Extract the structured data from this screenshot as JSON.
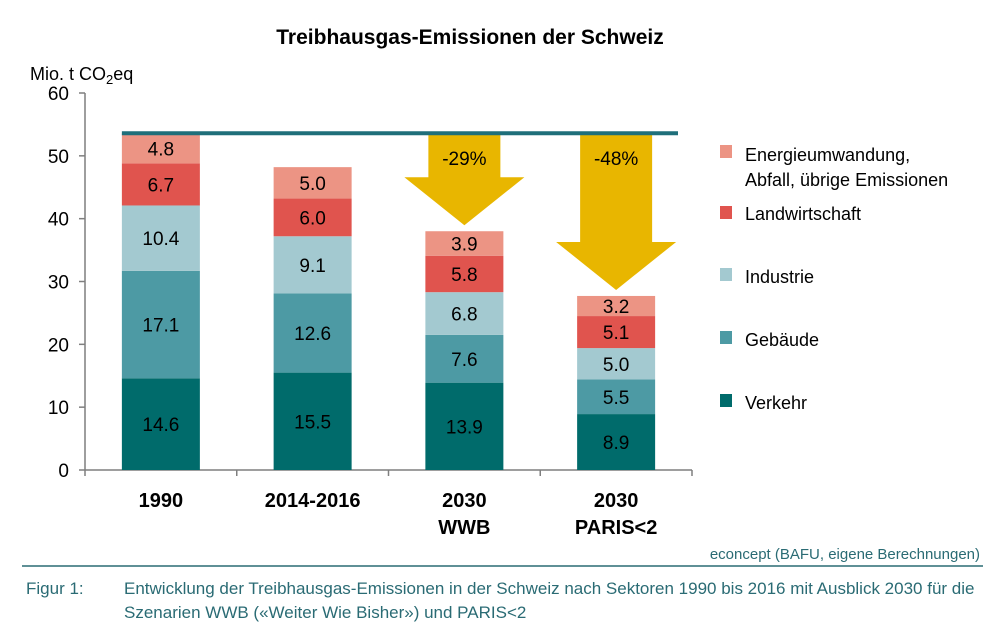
{
  "chart_data": {
    "type": "bar",
    "stacked": true,
    "title": "Treibhausgas-Emissionen der Schweiz",
    "ylabel_parts": [
      "Mio. t CO",
      "2",
      "eq"
    ],
    "ylim": [
      0,
      60
    ],
    "yticks": [
      0,
      10,
      20,
      30,
      40,
      50,
      60
    ],
    "categories": [
      [
        "1990"
      ],
      [
        "2014-2016"
      ],
      [
        "2030",
        "WWB"
      ],
      [
        "2030",
        "PARIS<2"
      ]
    ],
    "series": [
      {
        "name": "Verkehr",
        "color": "#006b6b",
        "values": [
          14.6,
          15.5,
          13.9,
          8.9
        ]
      },
      {
        "name": "Gebäude",
        "color": "#4d9aa4",
        "values": [
          17.1,
          12.6,
          7.6,
          5.5
        ]
      },
      {
        "name": "Industrie",
        "color": "#a3c9d0",
        "values": [
          10.4,
          9.1,
          6.8,
          5.0
        ]
      },
      {
        "name": "Landwirtschaft",
        "color": "#e0544e",
        "values": [
          6.7,
          6.0,
          5.8,
          5.1
        ]
      },
      {
        "name": "Energieumwandung, Abfall, übrige Emissionen",
        "legend_lines": [
          "Energieumwandung,",
          "Abfall, übrige Emissionen"
        ],
        "color": "#ec9484",
        "values": [
          4.8,
          5.0,
          3.9,
          3.2
        ]
      }
    ],
    "reference_line": {
      "value": 53.6,
      "color": "#1f6f7a"
    },
    "reduction_arrows": [
      {
        "category_index": 2,
        "label": "-29%",
        "color": "#e8b600"
      },
      {
        "category_index": 3,
        "label": "-48%",
        "color": "#e8b600"
      }
    ],
    "grid": false,
    "legend_position": "right"
  },
  "source": "econcept (BAFU, eigene Berechnungen)",
  "caption": {
    "label": "Figur 1:",
    "text": "Entwicklung der Treibhausgas-Emissionen in der Schweiz nach Sektoren 1990 bis 2016 mit Ausblick 2030 für die Szenarien WWB («Weiter Wie Bisher») und PARIS<2"
  }
}
